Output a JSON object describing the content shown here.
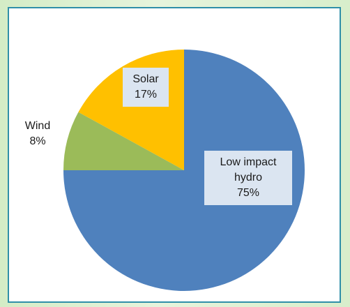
{
  "chart_data": {
    "type": "pie",
    "title": "",
    "start_angle_deg": 0,
    "direction": "clockwise",
    "legend": "none",
    "slices": [
      {
        "name": "Low impact hydro",
        "label_lines": [
          "Low impact",
          "hydro",
          "75%"
        ],
        "value": 75,
        "color": "#4f81bd"
      },
      {
        "name": "Wind",
        "label_lines": [
          "Wind",
          "8%"
        ],
        "value": 8,
        "color": "#9bbb59"
      },
      {
        "name": "Solar",
        "label_lines": [
          "Solar",
          "17%"
        ],
        "value": 17,
        "color": "#ffc000"
      }
    ]
  }
}
